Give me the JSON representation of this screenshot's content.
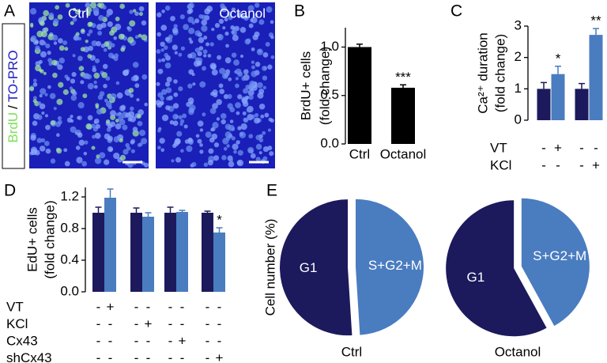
{
  "panel_a": {
    "letter": "A",
    "images": [
      "Ctrl",
      "Octanol"
    ],
    "stain": [
      "BrdU",
      "/",
      "TO-PRO"
    ]
  },
  "chart_data": [
    {
      "type": "bar",
      "letter": "B",
      "ylabel": [
        "BrdU+ cells",
        "(fold change)"
      ],
      "categories": [
        "Ctrl",
        "Octanol"
      ],
      "values": [
        1.0,
        0.58
      ],
      "errors": [
        0.03,
        0.03
      ],
      "color": "#000000",
      "value_annotations": [
        null,
        "***"
      ],
      "ylim": [
        0,
        1.2
      ],
      "yticks": [
        {
          "value": 0,
          "label": "0.0"
        },
        {
          "value": 0.5,
          "label": "0.5"
        },
        {
          "value": 1,
          "label": "1.0"
        }
      ]
    },
    {
      "type": "bar",
      "letter": "C",
      "ylabel": [
        "Ca²⁺ duration",
        "(fold change)"
      ],
      "series": [
        {
          "color": "#1c1a5c",
          "values": [
            1.0,
            1.0
          ],
          "errors": [
            0.2,
            0.17
          ],
          "value_annotations": [
            null,
            null
          ]
        },
        {
          "color": "#4a7cc0",
          "values": [
            1.47,
            2.72
          ],
          "errors": [
            0.25,
            0.2
          ],
          "value_annotations": [
            "*",
            "**"
          ]
        }
      ],
      "conditions": [
        {
          "label": "VT",
          "marks": [
            "-",
            "+",
            "-",
            "-"
          ]
        },
        {
          "label": "KCl",
          "marks": [
            "-",
            "-",
            "-",
            "+"
          ]
        }
      ],
      "ylim": [
        0,
        3
      ],
      "yticks": [
        0,
        1,
        2,
        3
      ]
    },
    {
      "type": "bar",
      "letter": "D",
      "ylabel": [
        "EdU+ cells",
        "(fold change)"
      ],
      "series": [
        {
          "color": "#1c1a5c",
          "values": [
            1.0,
            1.0,
            1.0,
            1.0
          ],
          "errors": [
            0.07,
            0.06,
            0.07,
            0.02
          ],
          "value_annotations": [
            null,
            null,
            null,
            null
          ]
        },
        {
          "color": "#4a7cc0",
          "values": [
            1.19,
            0.95,
            1.01,
            0.75
          ],
          "errors": [
            0.11,
            0.05,
            0.02,
            0.06
          ],
          "value_annotations": [
            null,
            null,
            null,
            "*"
          ]
        }
      ],
      "conditions": [
        {
          "label": "VT",
          "marks": [
            "-",
            "+",
            "-",
            "-",
            "-",
            "-",
            "-",
            "-"
          ]
        },
        {
          "label": "KCl",
          "marks": [
            "-",
            "-",
            "-",
            "+",
            "-",
            "-",
            "-",
            "-"
          ]
        },
        {
          "label": "Cx43",
          "marks": [
            "-",
            "-",
            "-",
            "-",
            "-",
            "+",
            "-",
            "-"
          ]
        },
        {
          "label": "shCx43",
          "marks": [
            "-",
            "-",
            "-",
            "-",
            "-",
            "-",
            "-",
            "+"
          ]
        }
      ],
      "ylim": [
        0,
        1.32
      ],
      "yticks": [
        {
          "value": 0,
          "label": "0.0"
        },
        {
          "value": 0.4,
          "label": "0.4"
        },
        {
          "value": 0.8,
          "label": "0.8"
        },
        {
          "value": 1.2,
          "label": "1.2"
        }
      ]
    },
    {
      "type": "pie",
      "letter": "E",
      "ylabel": "Cell number (%)",
      "title": "Ctrl",
      "labels": [
        "G1",
        "S+G2+M"
      ],
      "values": [
        51,
        49
      ],
      "colors": [
        "#1c1a5c",
        "#4a7cc0"
      ]
    },
    {
      "type": "pie",
      "title": "Octanol",
      "labels": [
        "G1",
        "S+G2+M"
      ],
      "values": [
        58,
        42
      ],
      "colors": [
        "#1c1a5c",
        "#4a7cc0"
      ]
    }
  ]
}
